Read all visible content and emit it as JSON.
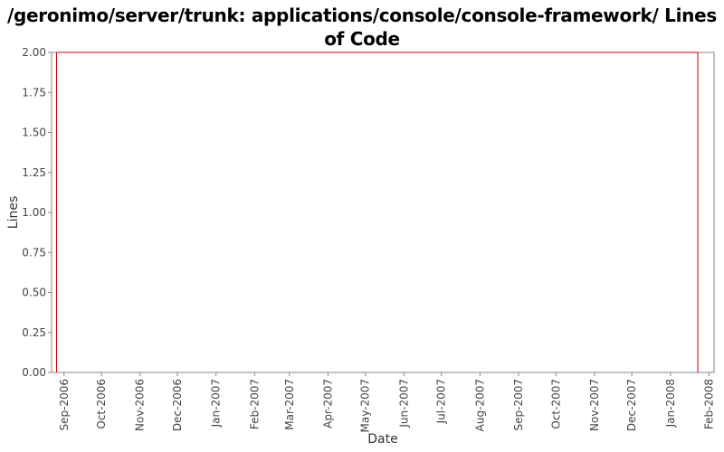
{
  "chart_data": {
    "type": "line",
    "title": "/geronimo/server/trunk: applications/console/console-framework/ Lines of Code",
    "xlabel": "Date",
    "ylabel": "Lines",
    "x_ticks": [
      "Sep-2006",
      "Oct-2006",
      "Nov-2006",
      "Dec-2006",
      "Jan-2007",
      "Feb-2007",
      "Mar-2007",
      "Apr-2007",
      "May-2007",
      "Jun-2007",
      "Jul-2007",
      "Aug-2007",
      "Sep-2007",
      "Oct-2007",
      "Nov-2007",
      "Dec-2007",
      "Jan-2008",
      "Feb-2008"
    ],
    "y_ticks": [
      "0.00",
      "0.25",
      "0.50",
      "0.75",
      "1.00",
      "1.25",
      "1.50",
      "1.75",
      "2.00"
    ],
    "ylim": [
      0,
      2
    ],
    "xlim": [
      "2006-08-22",
      "2008-02-05"
    ],
    "grid": false,
    "legend": "none",
    "series": [
      {
        "color": "#cc0000",
        "step": true,
        "points": [
          {
            "x": "2006-08-26",
            "y": 0
          },
          {
            "x": "2006-08-26",
            "y": 2
          },
          {
            "x": "2008-01-23",
            "y": 2
          },
          {
            "x": "2008-01-23",
            "y": 0
          }
        ]
      }
    ]
  }
}
